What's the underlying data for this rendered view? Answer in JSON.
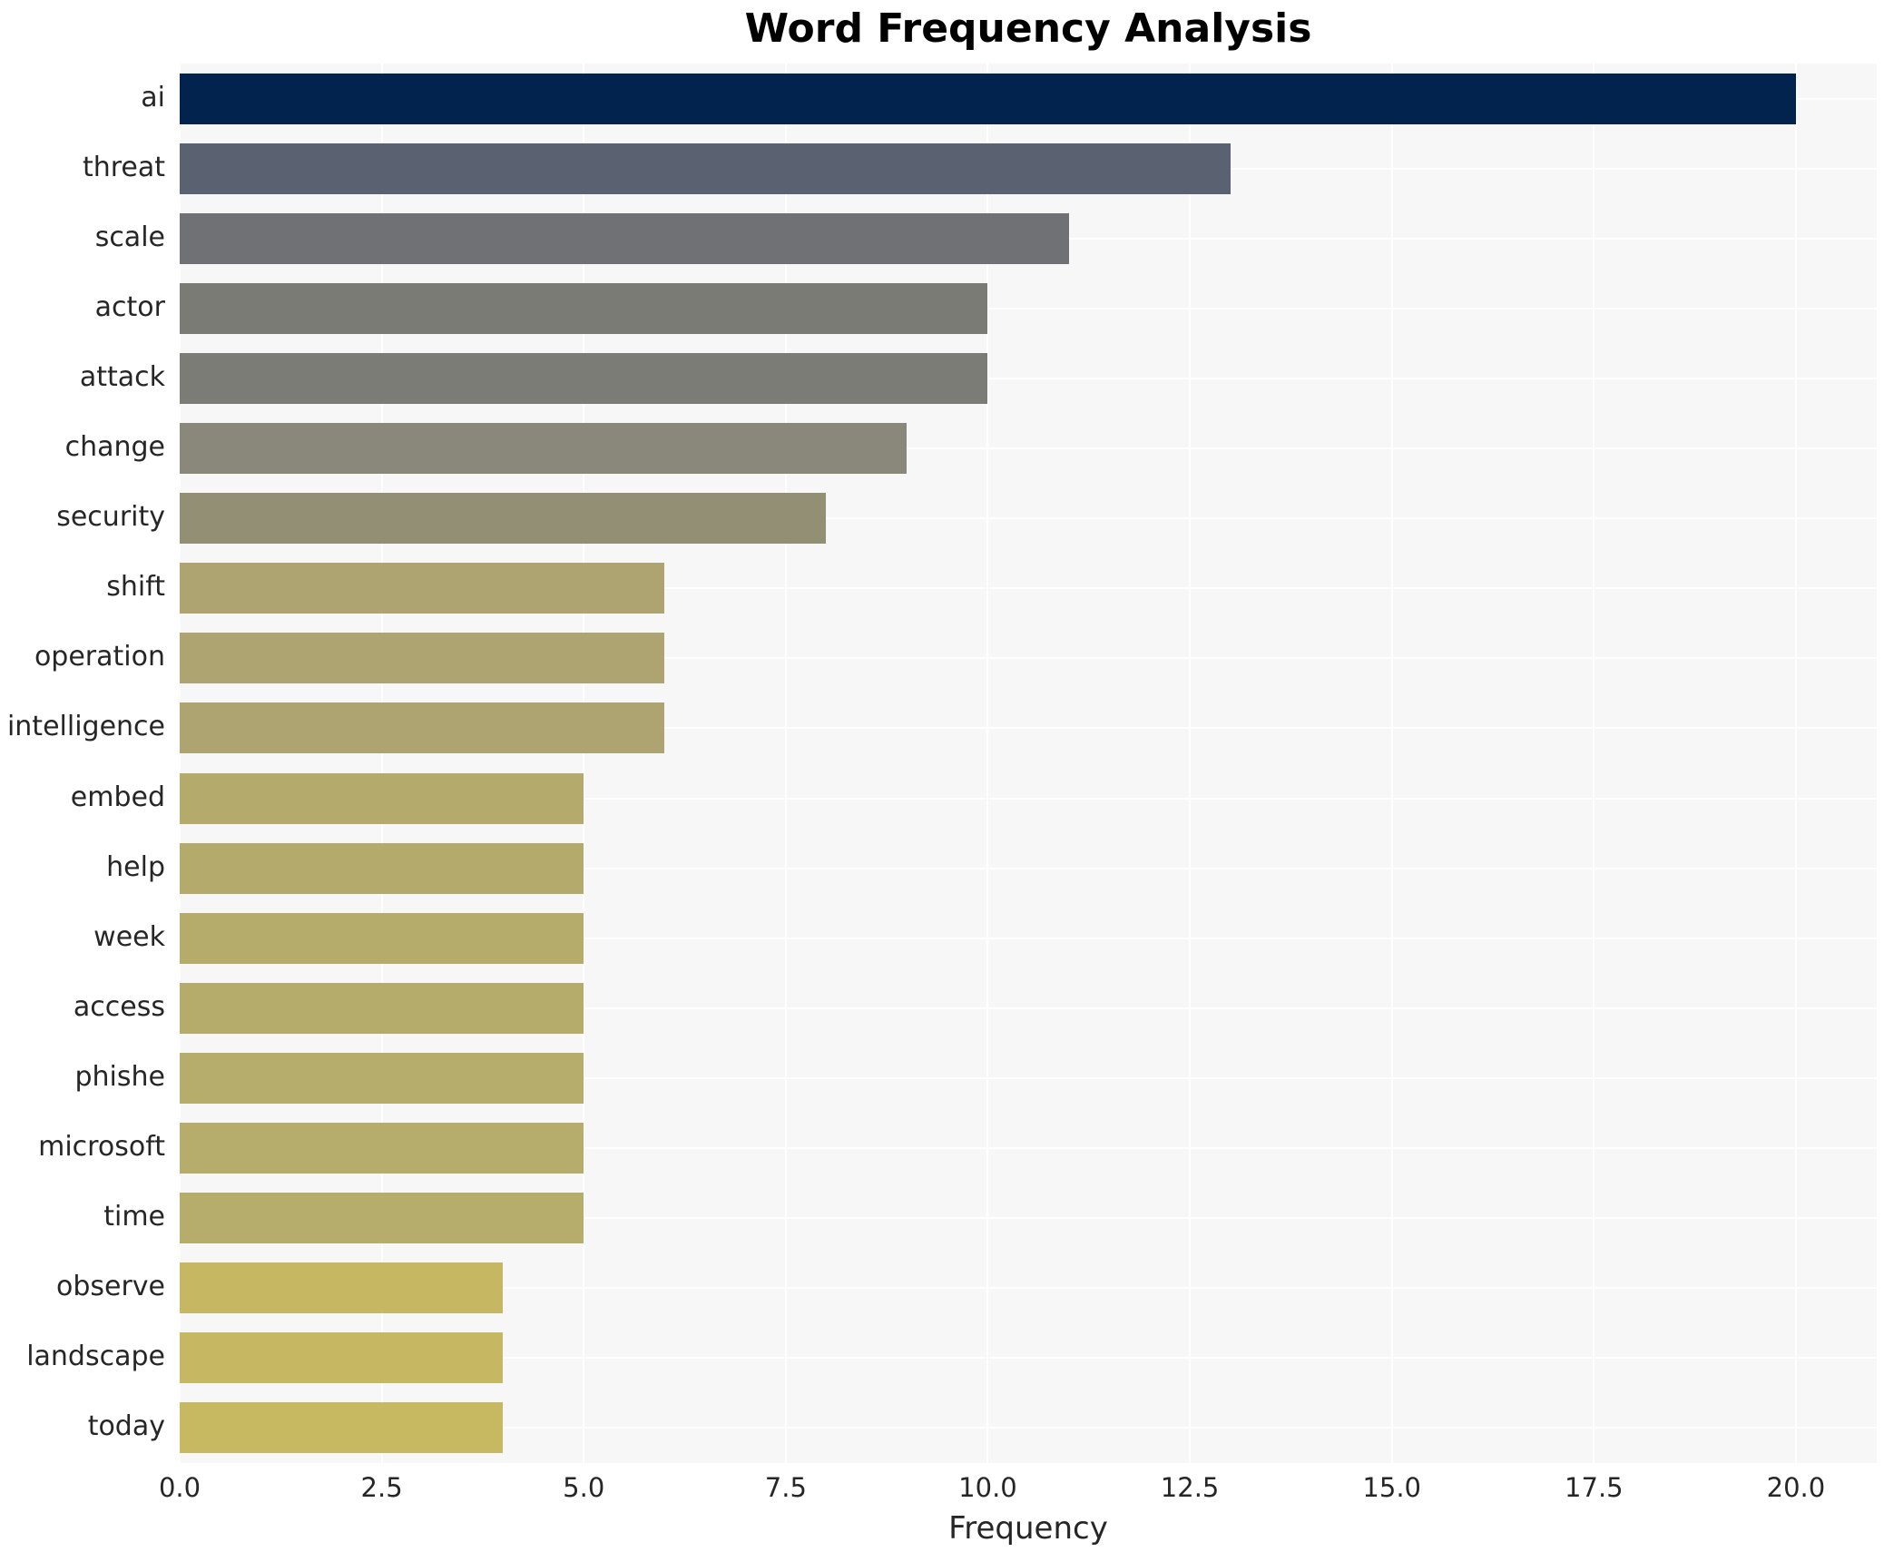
{
  "chart_data": {
    "type": "bar",
    "orientation": "horizontal",
    "title": "Word Frequency Analysis",
    "xlabel": "Frequency",
    "ylabel": "",
    "categories": [
      "ai",
      "threat",
      "scale",
      "actor",
      "attack",
      "change",
      "security",
      "shift",
      "operation",
      "intelligence",
      "embed",
      "help",
      "week",
      "access",
      "phishe",
      "microsoft",
      "time",
      "observe",
      "landscape",
      "today"
    ],
    "values": [
      20,
      13,
      11,
      10,
      10,
      9,
      8,
      6,
      6,
      6,
      5,
      5,
      5,
      5,
      5,
      5,
      5,
      4,
      4,
      4
    ],
    "bar_colors": [
      "#01234e",
      "#5a6170",
      "#707174",
      "#7b7b76",
      "#7c7c76",
      "#8a887a",
      "#938f75",
      "#ada471",
      "#ada471",
      "#aea471",
      "#b4aa6c",
      "#b4aa6c",
      "#b5ab6b",
      "#b5ab6b",
      "#b6ac6b",
      "#b6ac6b",
      "#b6ac6b",
      "#c6b863",
      "#c6b863",
      "#c7b962"
    ],
    "xticks": [
      "0.0",
      "2.5",
      "5.0",
      "7.5",
      "10.0",
      "12.5",
      "15.0",
      "17.5",
      "20.0"
    ],
    "xtick_values": [
      0,
      2.5,
      5,
      7.5,
      10,
      12.5,
      15,
      17.5,
      20
    ],
    "xlim": [
      0,
      21
    ],
    "grid": true,
    "legend_position": "none",
    "plot_background": "#f7f7f7",
    "gridline_color": "#ffffff",
    "text_color": "#262626",
    "title_color": "#000000"
  }
}
